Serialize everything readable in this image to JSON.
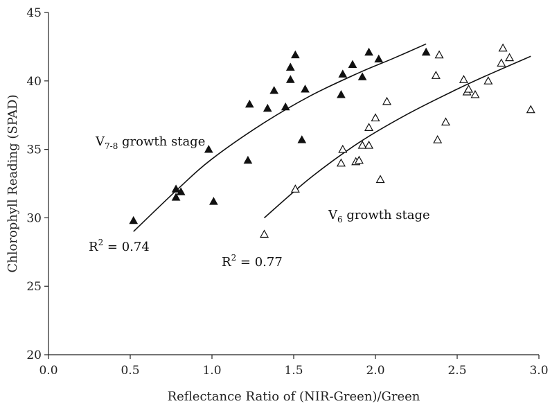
{
  "chart_data": {
    "type": "scatter",
    "title": "",
    "xlabel": "Reflectance Ratio of  (NIR-Green)/Green",
    "ylabel": "Chlorophyll Reading (SPAD)",
    "xlim": [
      0.0,
      3.0
    ],
    "ylim": [
      20,
      45
    ],
    "x_ticks": [
      "0.0",
      "0.5",
      "1.0",
      "1.5",
      "2.0",
      "2.5",
      "3.0"
    ],
    "y_ticks": [
      "20",
      "25",
      "30",
      "35",
      "40",
      "45"
    ],
    "grid": false,
    "legend": "none",
    "series": [
      {
        "marker": "filled-triangle",
        "color": "#111111",
        "points": [
          [
            0.52,
            29.8
          ],
          [
            0.78,
            32.1
          ],
          [
            0.78,
            31.5
          ],
          [
            0.81,
            31.9
          ],
          [
            0.98,
            35.0
          ],
          [
            1.01,
            31.2
          ],
          [
            1.22,
            34.2
          ],
          [
            1.23,
            38.3
          ],
          [
            1.34,
            38.0
          ],
          [
            1.38,
            39.3
          ],
          [
            1.45,
            38.1
          ],
          [
            1.48,
            40.1
          ],
          [
            1.48,
            41.0
          ],
          [
            1.51,
            41.9
          ],
          [
            1.55,
            35.7
          ],
          [
            1.57,
            39.4
          ],
          [
            1.79,
            39.0
          ],
          [
            1.8,
            40.5
          ],
          [
            1.86,
            41.2
          ],
          [
            1.92,
            40.3
          ],
          [
            1.96,
            42.1
          ],
          [
            2.02,
            41.6
          ],
          [
            2.31,
            42.1
          ]
        ]
      },
      {
        "marker": "open-triangle",
        "color": "#111111",
        "points": [
          [
            1.32,
            28.8
          ],
          [
            1.51,
            32.1
          ],
          [
            1.79,
            34.0
          ],
          [
            1.8,
            35.0
          ],
          [
            1.88,
            34.1
          ],
          [
            1.9,
            34.2
          ],
          [
            1.92,
            35.3
          ],
          [
            1.96,
            35.3
          ],
          [
            1.96,
            36.6
          ],
          [
            2.0,
            37.3
          ],
          [
            2.03,
            32.8
          ],
          [
            2.07,
            38.5
          ],
          [
            2.37,
            40.4
          ],
          [
            2.38,
            35.7
          ],
          [
            2.39,
            41.9
          ],
          [
            2.43,
            37.0
          ],
          [
            2.54,
            40.1
          ],
          [
            2.56,
            39.2
          ],
          [
            2.57,
            39.4
          ],
          [
            2.61,
            39.0
          ],
          [
            2.69,
            40.0
          ],
          [
            2.77,
            41.3
          ],
          [
            2.78,
            42.4
          ],
          [
            2.82,
            41.7
          ],
          [
            2.95,
            37.9
          ]
        ]
      }
    ],
    "fits": [
      {
        "x": [
          0.52,
          0.8,
          1.0,
          1.3,
          1.6,
          1.9,
          2.1,
          2.31
        ],
        "y": [
          29.0,
          32.2,
          34.3,
          36.8,
          38.9,
          40.6,
          41.6,
          42.7
        ]
      },
      {
        "x": [
          1.32,
          1.6,
          1.9,
          2.2,
          2.5,
          2.7,
          2.95
        ],
        "y": [
          30.0,
          32.9,
          35.5,
          37.6,
          39.4,
          40.5,
          41.8
        ]
      }
    ],
    "annotations": {
      "v78_base": "V",
      "v78_sub": "7-8",
      "v78_rest": " growth stage",
      "v6_base": "V",
      "v6_sub": "6",
      "v6_rest": " growth stage",
      "r2_a_base": "R",
      "r2_a_sup": "2",
      "r2_a_rest": " = 0.74",
      "r2_b_base": "R",
      "r2_b_sup": "2",
      "r2_b_rest": " = 0.77"
    }
  }
}
